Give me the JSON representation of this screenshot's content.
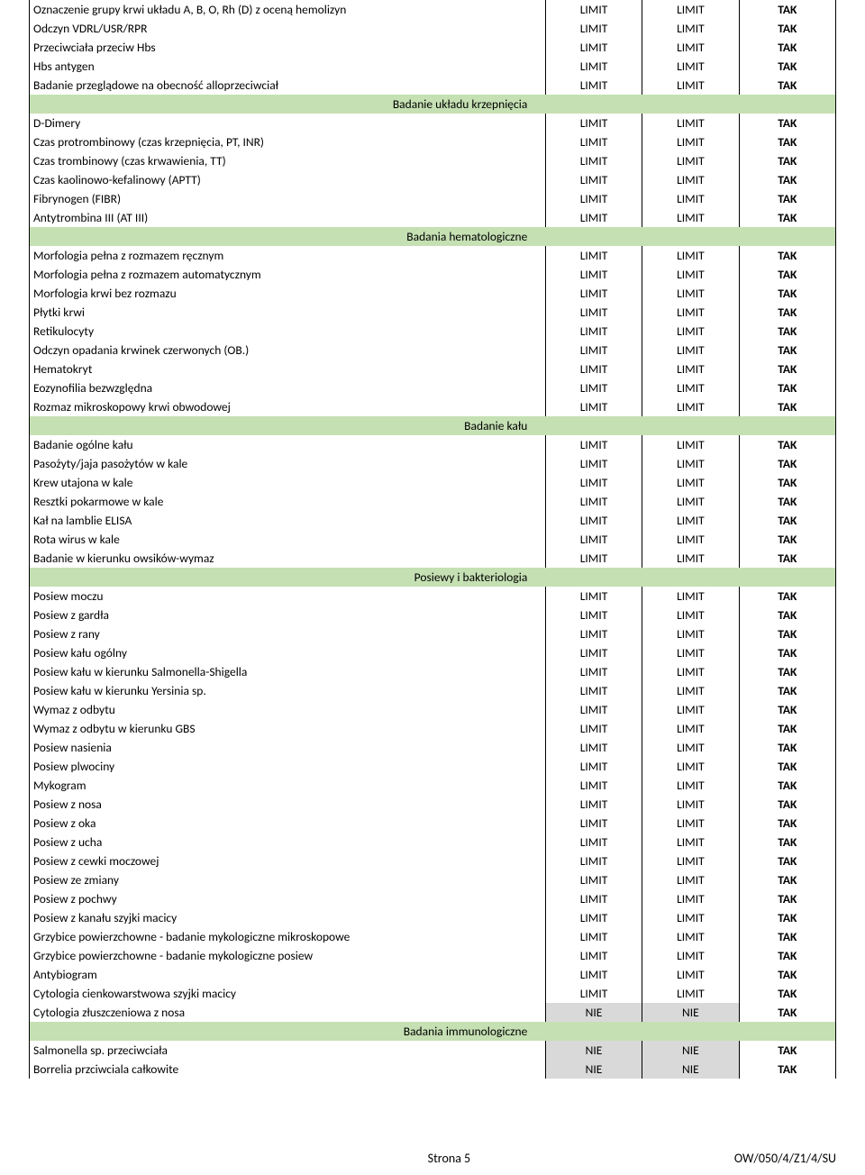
{
  "columns": {
    "col2_default": "LIMIT",
    "col3_default": "LIMIT",
    "col4_default": "TAK"
  },
  "footer": {
    "page": "Strona 5",
    "doc": "OW/050/4/Z1/4/SU"
  },
  "sections": [
    {
      "header": null,
      "rows": [
        {
          "name": "Oznaczenie grupy krwi układu A, B, O, Rh (D) z oceną hemolizyn",
          "c2": "LIMIT",
          "c3": "LIMIT",
          "c4": "TAK"
        },
        {
          "name": "Odczyn VDRL/USR/RPR",
          "c2": "LIMIT",
          "c3": "LIMIT",
          "c4": "TAK"
        },
        {
          "name": "Przeciwciała przeciw Hbs",
          "c2": "LIMIT",
          "c3": "LIMIT",
          "c4": "TAK"
        },
        {
          "name": "Hbs antygen",
          "c2": "LIMIT",
          "c3": "LIMIT",
          "c4": "TAK"
        },
        {
          "name": "Badanie przeglądowe na obecność alloprzeciwciał",
          "c2": "LIMIT",
          "c3": "LIMIT",
          "c4": "TAK"
        }
      ]
    },
    {
      "header": "Badanie układu krzepnięcia",
      "rows": [
        {
          "name": "D-Dimery",
          "c2": "LIMIT",
          "c3": "LIMIT",
          "c4": "TAK"
        },
        {
          "name": "Czas protrombinowy (czas krzepnięcia, PT, INR)",
          "c2": "LIMIT",
          "c3": "LIMIT",
          "c4": "TAK"
        },
        {
          "name": "Czas trombinowy (czas krwawienia, TT)",
          "c2": "LIMIT",
          "c3": "LIMIT",
          "c4": "TAK"
        },
        {
          "name": "Czas kaolinowo-kefalinowy (APTT)",
          "c2": "LIMIT",
          "c3": "LIMIT",
          "c4": "TAK"
        },
        {
          "name": "Fibrynogen (FIBR)",
          "c2": "LIMIT",
          "c3": "LIMIT",
          "c4": "TAK"
        },
        {
          "name": "Antytrombina III (AT III)",
          "c2": "LIMIT",
          "c3": "LIMIT",
          "c4": "TAK"
        }
      ]
    },
    {
      "header": "Badania hematologiczne",
      "rows": [
        {
          "name": "Morfologia pełna z rozmazem ręcznym",
          "c2": "LIMIT",
          "c3": "LIMIT",
          "c4": "TAK"
        },
        {
          "name": "Morfologia pełna z rozmazem automatycznym",
          "c2": "LIMIT",
          "c3": "LIMIT",
          "c4": "TAK"
        },
        {
          "name": "Morfologia krwi bez rozmazu",
          "c2": "LIMIT",
          "c3": "LIMIT",
          "c4": "TAK"
        },
        {
          "name": "Płytki krwi",
          "c2": "LIMIT",
          "c3": "LIMIT",
          "c4": "TAK"
        },
        {
          "name": "Retikulocyty",
          "c2": "LIMIT",
          "c3": "LIMIT",
          "c4": "TAK"
        },
        {
          "name": "Odczyn opadania krwinek czerwonych (OB.)",
          "c2": "LIMIT",
          "c3": "LIMIT",
          "c4": "TAK"
        },
        {
          "name": "Hematokryt",
          "c2": "LIMIT",
          "c3": "LIMIT",
          "c4": "TAK"
        },
        {
          "name": "Eozynofilia bezwzględna",
          "c2": "LIMIT",
          "c3": "LIMIT",
          "c4": "TAK"
        },
        {
          "name": "Rozmaz mikroskopowy krwi obwodowej",
          "c2": "LIMIT",
          "c3": "LIMIT",
          "c4": "TAK"
        }
      ]
    },
    {
      "header": "Badanie kału",
      "rows": [
        {
          "name": "Badanie ogólne kału",
          "c2": "LIMIT",
          "c3": "LIMIT",
          "c4": "TAK"
        },
        {
          "name": "Pasożyty/jaja pasożytów w kale",
          "c2": "LIMIT",
          "c3": "LIMIT",
          "c4": "TAK"
        },
        {
          "name": "Krew utajona w kale",
          "c2": "LIMIT",
          "c3": "LIMIT",
          "c4": "TAK"
        },
        {
          "name": "Resztki pokarmowe w kale",
          "c2": "LIMIT",
          "c3": "LIMIT",
          "c4": "TAK"
        },
        {
          "name": "Kał na lamblie ELISA",
          "c2": "LIMIT",
          "c3": "LIMIT",
          "c4": "TAK"
        },
        {
          "name": "Rota wirus w kale",
          "c2": "LIMIT",
          "c3": "LIMIT",
          "c4": "TAK"
        },
        {
          "name": "Badanie w kierunku owsików-wymaz",
          "c2": "LIMIT",
          "c3": "LIMIT",
          "c4": "TAK"
        }
      ]
    },
    {
      "header": "Posiewy i bakteriologia",
      "rows": [
        {
          "name": "Posiew moczu",
          "c2": "LIMIT",
          "c3": "LIMIT",
          "c4": "TAK"
        },
        {
          "name": "Posiew z gardła",
          "c2": "LIMIT",
          "c3": "LIMIT",
          "c4": "TAK"
        },
        {
          "name": "Posiew z rany",
          "c2": "LIMIT",
          "c3": "LIMIT",
          "c4": "TAK"
        },
        {
          "name": "Posiew kału ogólny",
          "c2": "LIMIT",
          "c3": "LIMIT",
          "c4": "TAK"
        },
        {
          "name": "Posiew kału w kierunku Salmonella-Shigella",
          "c2": "LIMIT",
          "c3": "LIMIT",
          "c4": "TAK"
        },
        {
          "name": "Posiew kału w kierunku Yersinia sp.",
          "c2": "LIMIT",
          "c3": "LIMIT",
          "c4": "TAK"
        },
        {
          "name": "Wymaz z odbytu",
          "c2": "LIMIT",
          "c3": "LIMIT",
          "c4": "TAK"
        },
        {
          "name": "Wymaz z odbytu w kierunku GBS",
          "c2": "LIMIT",
          "c3": "LIMIT",
          "c4": "TAK"
        },
        {
          "name": "Posiew nasienia",
          "c2": "LIMIT",
          "c3": "LIMIT",
          "c4": "TAK"
        },
        {
          "name": "Posiew plwociny",
          "c2": "LIMIT",
          "c3": "LIMIT",
          "c4": "TAK"
        },
        {
          "name": "Mykogram",
          "c2": "LIMIT",
          "c3": "LIMIT",
          "c4": "TAK"
        },
        {
          "name": "Posiew z nosa",
          "c2": "LIMIT",
          "c3": "LIMIT",
          "c4": "TAK"
        },
        {
          "name": "Posiew z oka",
          "c2": "LIMIT",
          "c3": "LIMIT",
          "c4": "TAK"
        },
        {
          "name": "Posiew z ucha",
          "c2": "LIMIT",
          "c3": "LIMIT",
          "c4": "TAK"
        },
        {
          "name": "Posiew z cewki moczowej",
          "c2": "LIMIT",
          "c3": "LIMIT",
          "c4": "TAK"
        },
        {
          "name": "Posiew ze zmiany",
          "c2": "LIMIT",
          "c3": "LIMIT",
          "c4": "TAK"
        },
        {
          "name": "Posiew z pochwy",
          "c2": "LIMIT",
          "c3": "LIMIT",
          "c4": "TAK"
        },
        {
          "name": "Posiew z kanału szyjki macicy",
          "c2": "LIMIT",
          "c3": "LIMIT",
          "c4": "TAK"
        },
        {
          "name": "Grzybice powierzchowne - badanie mykologiczne mikroskopowe",
          "c2": "LIMIT",
          "c3": "LIMIT",
          "c4": "TAK"
        },
        {
          "name": "Grzybice powierzchowne - badanie mykologiczne posiew",
          "c2": "LIMIT",
          "c3": "LIMIT",
          "c4": "TAK"
        },
        {
          "name": "Antybiogram",
          "c2": "LIMIT",
          "c3": "LIMIT",
          "c4": "TAK"
        },
        {
          "name": "Cytologia cienkowarstwowa szyjki macicy",
          "c2": "LIMIT",
          "c3": "LIMIT",
          "c4": "TAK"
        },
        {
          "name": "Cytologia złuszczeniowa z nosa",
          "c2": "NIE",
          "c3": "NIE",
          "c4": "TAK",
          "grey": true
        }
      ]
    },
    {
      "header": "Badania immunologiczne",
      "rows": [
        {
          "name": "Salmonella sp. przeciwciała",
          "c2": "NIE",
          "c3": "NIE",
          "c4": "TAK",
          "grey": true
        },
        {
          "name": "Borrelia przciwciala całkowite",
          "c2": "NIE",
          "c3": "NIE",
          "c4": "TAK",
          "grey": true
        }
      ]
    }
  ]
}
